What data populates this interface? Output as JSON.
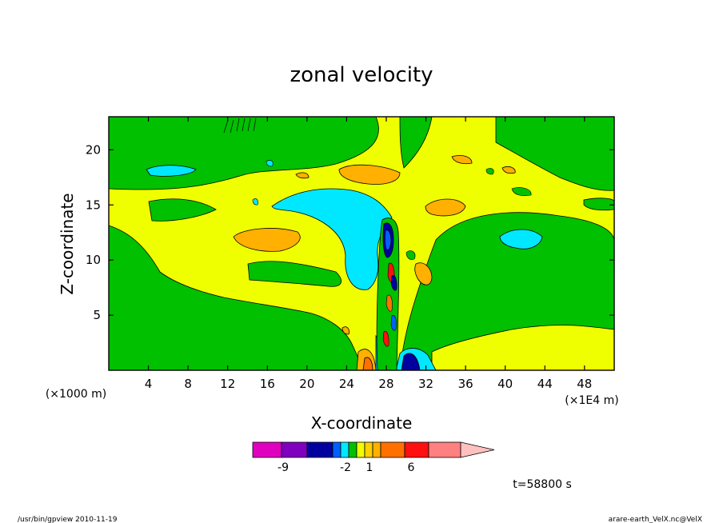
{
  "chart_data": {
    "type": "heatmap",
    "title": "zonal velocity",
    "xlabel": "X-coordinate",
    "ylabel": "Z-coordinate",
    "x_unit": "(×1E4 m)",
    "y_unit": "(×1000 m)",
    "xlim": [
      0,
      51
    ],
    "ylim": [
      0,
      23
    ],
    "x_ticks": [
      "4",
      "8",
      "12",
      "16",
      "20",
      "24",
      "28",
      "32",
      "36",
      "40",
      "44",
      "48"
    ],
    "x_tick_values": [
      4,
      8,
      12,
      16,
      20,
      24,
      28,
      32,
      36,
      40,
      44,
      48
    ],
    "y_ticks": [
      "5",
      "10",
      "15",
      "20"
    ],
    "y_tick_values": [
      5,
      10,
      15,
      20
    ],
    "colorbar": {
      "colors": [
        "#e000c0",
        "#8000c0",
        "#0000a0",
        "#0060ff",
        "#00e8ff",
        "#00c000",
        "#f0ff00",
        "#ffd000",
        "#ffb000",
        "#ff7000",
        "#ff1010",
        "#ff8080",
        "#ffc0c0"
      ],
      "labels": [
        "-9",
        "-2",
        "1",
        "6"
      ],
      "label_values": [
        -9,
        -2,
        1,
        6
      ]
    },
    "field": [
      {
        "x": 0,
        "z": 20,
        "u": 0
      },
      {
        "x": 6,
        "z": 18.5,
        "u": -2
      },
      {
        "x": 8,
        "z": 15,
        "u": 0
      },
      {
        "x": 18,
        "z": 12,
        "u": 2
      },
      {
        "x": 20,
        "z": 15.5,
        "u": -2
      },
      {
        "x": 24,
        "z": 13,
        "u": -2
      },
      {
        "x": 25,
        "z": 18,
        "u": 2
      },
      {
        "x": 27,
        "z": 1,
        "u": 4
      },
      {
        "x": 28,
        "z": 12,
        "u": -9
      },
      {
        "x": 30.5,
        "z": 1,
        "u": -9
      },
      {
        "x": 33,
        "z": 15,
        "u": 2
      },
      {
        "x": 40,
        "z": 12.5,
        "u": -2
      },
      {
        "x": 44,
        "z": 10,
        "u": 0
      }
    ]
  },
  "annotations": {
    "time": "t=58800 s",
    "footer_left": "/usr/bin/gpview   2010-11-19",
    "footer_right": "arare-earth_VelX.nc@VelX"
  }
}
